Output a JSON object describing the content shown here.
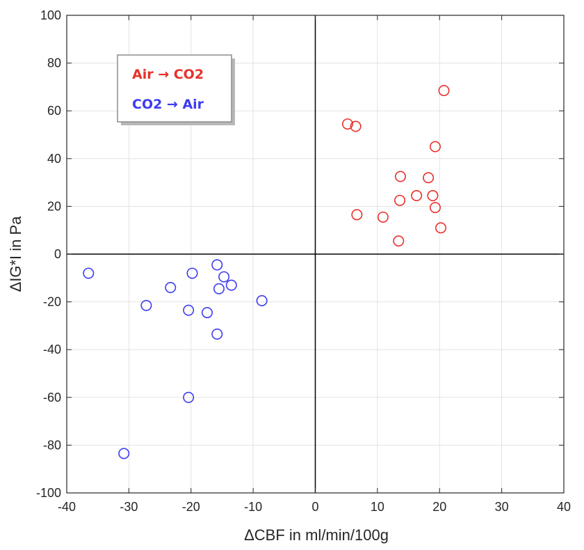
{
  "chart_data": {
    "type": "scatter",
    "title": "",
    "xlabel": "ΔCBF in ml/min/100g",
    "ylabel": "ΔIG*I in Pa",
    "xlim": [
      -40,
      40
    ],
    "ylim": [
      -100,
      100
    ],
    "xticks": [
      "-40",
      "-30",
      "-20",
      "-10",
      "0",
      "10",
      "20",
      "30",
      "40"
    ],
    "yticks": [
      "100",
      "80",
      "60",
      "40",
      "20",
      "0",
      "-20",
      "-40",
      "-60",
      "-80",
      "-100"
    ],
    "grid": true,
    "zero_lines": true,
    "legend": "top-left",
    "series": [
      {
        "name": "Air → CO2",
        "color": "#e8302a",
        "marker": "circle-open",
        "points": [
          [
            5.2,
            54.5
          ],
          [
            6.5,
            53.5
          ],
          [
            20.7,
            68.5
          ],
          [
            19.3,
            45.0
          ],
          [
            13.7,
            32.5
          ],
          [
            18.2,
            32.0
          ],
          [
            13.6,
            22.5
          ],
          [
            16.3,
            24.5
          ],
          [
            18.9,
            24.5
          ],
          [
            19.3,
            19.5
          ],
          [
            6.7,
            16.5
          ],
          [
            10.9,
            15.5
          ],
          [
            20.2,
            11.0
          ],
          [
            13.4,
            5.5
          ]
        ]
      },
      {
        "name": "CO2 → Air",
        "color": "#3c3cf0",
        "marker": "circle-open",
        "points": [
          [
            -36.5,
            -8.0
          ],
          [
            -15.8,
            -4.5
          ],
          [
            -19.8,
            -8.0
          ],
          [
            -14.7,
            -9.5
          ],
          [
            -23.3,
            -14.0
          ],
          [
            -15.5,
            -14.5
          ],
          [
            -13.5,
            -13.0
          ],
          [
            -8.6,
            -19.5
          ],
          [
            -27.2,
            -21.5
          ],
          [
            -20.4,
            -23.5
          ],
          [
            -17.4,
            -24.5
          ],
          [
            -15.8,
            -33.5
          ],
          [
            -20.4,
            -60.0
          ],
          [
            -30.8,
            -83.5
          ]
        ]
      }
    ]
  }
}
